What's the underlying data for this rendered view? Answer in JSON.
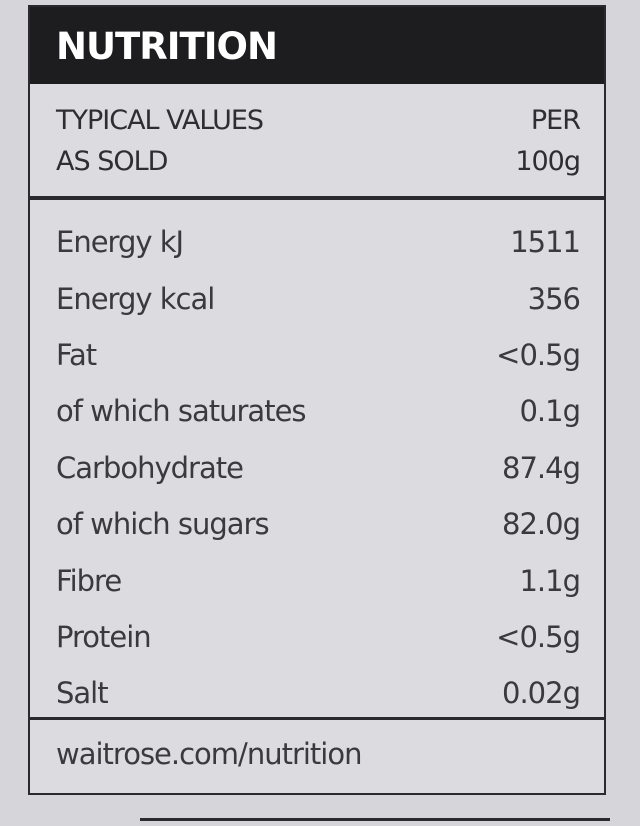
{
  "header": {
    "title": "NUTRITION"
  },
  "columns": {
    "label": [
      "TYPICAL VALUES",
      "AS SOLD"
    ],
    "value": [
      "PER",
      "100g"
    ]
  },
  "table": {
    "rows": [
      [
        "Energy kJ",
        "1511"
      ],
      [
        "Energy kcal",
        "356"
      ],
      [
        "Fat",
        "<0.5g"
      ],
      [
        "of which saturates",
        "0.1g"
      ],
      [
        "Carbohydrate",
        "87.4g"
      ],
      [
        "of which sugars",
        "82.0g"
      ],
      [
        "Fibre",
        "1.1g"
      ],
      [
        "Protein",
        "<0.5g"
      ],
      [
        "Salt",
        "0.02g"
      ]
    ]
  },
  "footer": {
    "link": "waitrose.com/nutrition"
  }
}
